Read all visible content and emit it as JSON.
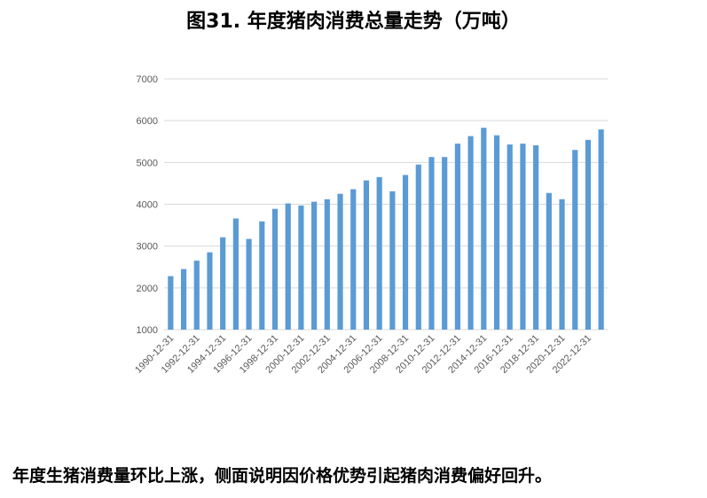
{
  "title": "图31. 年度猪肉消费总量走势（万吨）",
  "caption": "年度生猪消费量环比上涨，侧面说明因价格优势引起猪肉消费偏好回升。",
  "colors": {
    "bar": "#5b9bd5",
    "grid": "#d9d9d9",
    "tick_text": "#595959"
  },
  "chart_data": {
    "type": "bar",
    "title": "图31. 年度猪肉消费总量走势（万吨）",
    "xlabel": "",
    "ylabel": "",
    "ylim": [
      1000,
      7000
    ],
    "yticks": [
      1000,
      2000,
      3000,
      4000,
      5000,
      6000,
      7000
    ],
    "grid": true,
    "legend": "none",
    "categories": [
      "1990-12-31",
      "1991-12-31",
      "1992-12-31",
      "1993-12-31",
      "1994-12-31",
      "1995-12-31",
      "1996-12-31",
      "1997-12-31",
      "1998-12-31",
      "1999-12-31",
      "2000-12-31",
      "2001-12-31",
      "2002-12-31",
      "2003-12-31",
      "2004-12-31",
      "2005-12-31",
      "2006-12-31",
      "2007-12-31",
      "2008-12-31",
      "2009-12-31",
      "2010-12-31",
      "2011-12-31",
      "2012-12-31",
      "2013-12-31",
      "2014-12-31",
      "2015-12-31",
      "2016-12-31",
      "2017-12-31",
      "2018-12-31",
      "2019-12-31",
      "2020-12-31",
      "2021-12-31",
      "2022-12-31",
      "2023-12-31"
    ],
    "tick_labels": [
      "1990-12-31",
      "",
      "1992-12-31",
      "",
      "1994-12-31",
      "",
      "1996-12-31",
      "",
      "1998-12-31",
      "",
      "2000-12-31",
      "",
      "2002-12-31",
      "",
      "2004-12-31",
      "",
      "2006-12-31",
      "",
      "2008-12-31",
      "",
      "2010-12-31",
      "",
      "2012-12-31",
      "",
      "2014-12-31",
      "",
      "2016-12-31",
      "",
      "2018-12-31",
      "",
      "2020-12-31",
      "",
      "2022-12-31",
      ""
    ],
    "values": [
      2280,
      2450,
      2650,
      2850,
      3210,
      3660,
      3170,
      3590,
      3890,
      4020,
      3970,
      4060,
      4120,
      4250,
      4360,
      4570,
      4650,
      4310,
      4700,
      4950,
      5130,
      5130,
      5450,
      5630,
      5830,
      5650,
      5430,
      5450,
      5410,
      4270,
      4120,
      5300,
      5540,
      5790
    ]
  }
}
